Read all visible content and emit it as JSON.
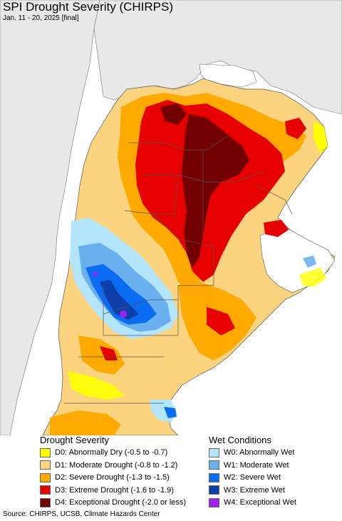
{
  "map": {
    "title": "SPI Drought Severity (CHIRPS)",
    "subtitle": "Jan. 11 - 20, 2025 [final]",
    "colors": {
      "ocean": "#ffffff",
      "other_land": "#e8e8e8",
      "no_data_land": "#ffffff",
      "D0": "#ffff00",
      "D1": "#fcd37f",
      "D2": "#ffaa00",
      "D3": "#e60000",
      "D4": "#730000",
      "W0": "#b3e5fc",
      "W1": "#6ab0ef",
      "W2": "#0a6cf0",
      "W3": "#0e3fa8",
      "W4": "#a020f0"
    }
  },
  "legend": {
    "drought_heading": "Drought Severity",
    "wet_heading": "Wet Conditions",
    "drought_items": [
      {
        "label": "D0: Abnormally Dry (-0.5 to -0.7)",
        "color": "#ffff00"
      },
      {
        "label": "D1: Moderate Drought (-0.8 to -1.2)",
        "color": "#fcd37f"
      },
      {
        "label": "D2: Severe Drought (-1.3 to -1.5)",
        "color": "#ffaa00"
      },
      {
        "label": "D3: Extreme Drought (-1.6 to -1.9)",
        "color": "#e60000"
      },
      {
        "label": "D4: Exceptional Drought (-2.0 or less)",
        "color": "#730000"
      }
    ],
    "wet_items": [
      {
        "label": "W0: Abnormally Wet",
        "color": "#b3e5fc"
      },
      {
        "label": "W1: Moderate Wet",
        "color": "#6ab0ef"
      },
      {
        "label": "W2: Severe Wet",
        "color": "#0a6cf0"
      },
      {
        "label": "W3: Extreme Wet",
        "color": "#0e3fa8"
      },
      {
        "label": "W4: Exceptional Wet",
        "color": "#a020f0"
      }
    ]
  },
  "footer": {
    "source": "Source: CHIRPS, UCSB, Climate Hazards Center"
  }
}
